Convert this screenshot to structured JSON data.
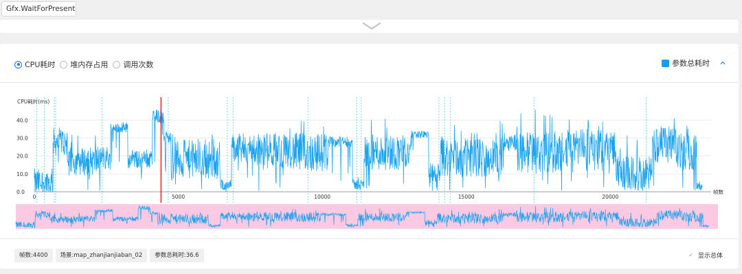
{
  "dropdown": {
    "label": "Gfx.WaitForPresent"
  },
  "metric_options": [
    {
      "label": "CPU耗时",
      "selected": true
    },
    {
      "label": "堆内存占用",
      "selected": false
    },
    {
      "label": "调用次数",
      "selected": false
    }
  ],
  "legend": {
    "label": "参数总耗时",
    "color": "#1a9bf0"
  },
  "chart_data": {
    "type": "line",
    "ylabel": "CPU耗时(ms)",
    "xlabel": "帧数",
    "yticks": [
      "0.0",
      "10.0",
      "20.0",
      "30.0",
      "40.0"
    ],
    "xticks": [
      "0",
      "5000",
      "10000",
      "15000",
      "20000"
    ],
    "ylim": [
      0,
      47
    ],
    "xlim": [
      0,
      23500
    ],
    "selected_frame": 4400,
    "marker_frames": [
      80,
      350,
      690,
      740,
      2350,
      4650,
      6700,
      6900,
      9500,
      11200,
      11350,
      14050,
      14250,
      14450,
      17350,
      21250
    ],
    "series": [
      {
        "name": "参数总耗时",
        "segments": [
          {
            "from": 0,
            "to": 650,
            "level": 5,
            "amp": 8,
            "spike": 18
          },
          {
            "from": 650,
            "to": 1150,
            "level": 28,
            "amp": 8,
            "spike": 38
          },
          {
            "from": 1150,
            "to": 2200,
            "level": 17,
            "amp": 8,
            "spike": 33
          },
          {
            "from": 2200,
            "to": 2650,
            "level": 19,
            "amp": 7,
            "spike": 28
          },
          {
            "from": 2650,
            "to": 3250,
            "level": 36,
            "amp": 3,
            "spike": 38
          },
          {
            "from": 3250,
            "to": 4100,
            "level": 18,
            "amp": 5,
            "spike": 24
          },
          {
            "from": 4100,
            "to": 4500,
            "level": 42,
            "amp": 4,
            "spike": 46
          },
          {
            "from": 4500,
            "to": 4750,
            "level": 30,
            "amp": 3,
            "spike": 34
          },
          {
            "from": 4750,
            "to": 6450,
            "level": 18,
            "amp": 11,
            "spike": 33
          },
          {
            "from": 6450,
            "to": 6850,
            "level": 4,
            "amp": 3,
            "spike": 7
          },
          {
            "from": 6850,
            "to": 7700,
            "level": 24,
            "amp": 9,
            "spike": 34
          },
          {
            "from": 7700,
            "to": 9000,
            "level": 23,
            "amp": 10,
            "spike": 36
          },
          {
            "from": 9000,
            "to": 10200,
            "level": 22,
            "amp": 11,
            "spike": 42
          },
          {
            "from": 10200,
            "to": 11050,
            "level": 28,
            "amp": 3,
            "spike": 31
          },
          {
            "from": 11050,
            "to": 11450,
            "level": 4,
            "amp": 3,
            "spike": 8
          },
          {
            "from": 11450,
            "to": 13100,
            "level": 22,
            "amp": 10,
            "spike": 42
          },
          {
            "from": 13100,
            "to": 13700,
            "level": 32,
            "amp": 2,
            "spike": 33
          },
          {
            "from": 13700,
            "to": 14100,
            "level": 8,
            "amp": 8,
            "spike": 33
          },
          {
            "from": 14100,
            "to": 16300,
            "level": 19,
            "amp": 11,
            "spike": 40
          },
          {
            "from": 16300,
            "to": 16750,
            "level": 28,
            "amp": 5,
            "spike": 33
          },
          {
            "from": 16750,
            "to": 18750,
            "level": 22,
            "amp": 12,
            "spike": 46
          },
          {
            "from": 18750,
            "to": 20200,
            "level": 25,
            "amp": 10,
            "spike": 40
          },
          {
            "from": 20200,
            "to": 21450,
            "level": 10,
            "amp": 10,
            "spike": 33
          },
          {
            "from": 21450,
            "to": 22300,
            "level": 26,
            "amp": 11,
            "spike": 46
          },
          {
            "from": 22300,
            "to": 23000,
            "level": 22,
            "amp": 10,
            "spike": 38
          },
          {
            "from": 23000,
            "to": 23200,
            "level": 3,
            "amp": 2,
            "spike": 6
          }
        ]
      }
    ]
  },
  "info_chips": [
    "帧数:4400",
    "场景:map_zhanjianjiaban_02",
    "参数总耗时:36.6"
  ],
  "show_total": {
    "label": "显示总体",
    "checked": true
  }
}
